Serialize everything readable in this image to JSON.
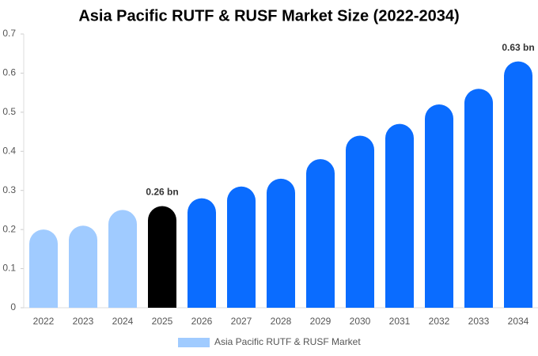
{
  "chart_data": {
    "type": "bar",
    "title": "Asia Pacific RUTF & RUSF Market Size (2022-2034)",
    "categories": [
      "2022",
      "2023",
      "2024",
      "2025",
      "2026",
      "2027",
      "2028",
      "2029",
      "2030",
      "2031",
      "2032",
      "2033",
      "2034"
    ],
    "series": [
      {
        "name": "Asia Pacific RUTF & RUSF Market",
        "color": "#a0cbff",
        "values": [
          0.2,
          0.21,
          0.25,
          0.26,
          0.28,
          0.31,
          0.33,
          0.38,
          0.44,
          0.47,
          0.52,
          0.56,
          0.63
        ],
        "value_labels": [
          null,
          null,
          null,
          "0.26 bn",
          null,
          null,
          null,
          null,
          null,
          null,
          null,
          null,
          "0.63 bn"
        ],
        "colors": [
          "#a0cbff",
          "#a0cbff",
          "#a0cbff",
          "#000000",
          "#0a6cff",
          "#0a6cff",
          "#0a6cff",
          "#0a6cff",
          "#0a6cff",
          "#0a6cff",
          "#0a6cff",
          "#0a6cff",
          "#0a6cff"
        ]
      }
    ],
    "ylim": [
      0,
      0.7
    ],
    "yticks": [
      0,
      0.1,
      0.2,
      0.3,
      0.4,
      0.5,
      0.6,
      0.7
    ],
    "legend": "bottom"
  }
}
